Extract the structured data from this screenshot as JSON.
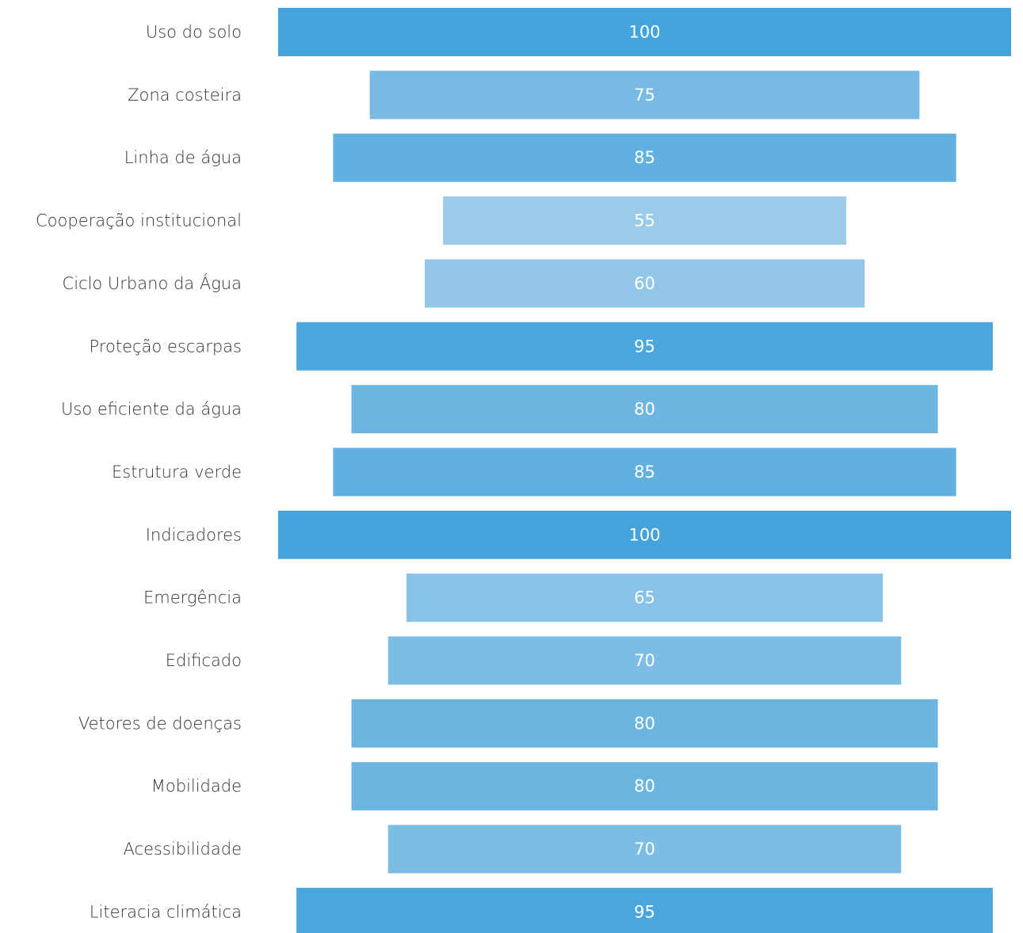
{
  "chart_data": {
    "type": "funnel",
    "categories": [
      "Uso do solo",
      "Zona costeira",
      "Linha de água",
      "Cooperação institucional",
      "Ciclo Urbano da Água",
      "Proteção escarpas",
      "Uso eficiente da água",
      "Estrutura verde",
      "Indicadores",
      "Emergência",
      "Edificado",
      "Vetores de doenças",
      "Mobilidade",
      "Acessibilidade",
      "Literacia climática"
    ],
    "values": [
      100,
      75,
      85,
      55,
      60,
      95,
      80,
      85,
      100,
      65,
      70,
      80,
      80,
      70,
      95
    ],
    "colors": [
      "#45a3db",
      "#78bae3",
      "#62b0e0",
      "#9ccbea",
      "#92c7e8",
      "#4aa6dc",
      "#6db5e1",
      "#62b0e0",
      "#45a3db",
      "#88c2e6",
      "#7dbde4",
      "#6db5e1",
      "#6db5e1",
      "#7dbde4",
      "#4aa6dc"
    ]
  }
}
